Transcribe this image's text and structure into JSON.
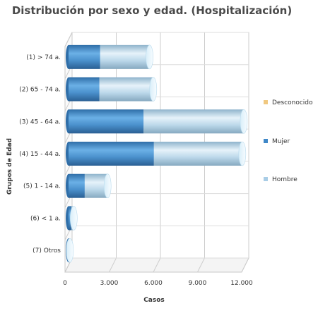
{
  "chart_data": {
    "type": "bar",
    "orientation": "horizontal",
    "stacked": true,
    "style": "3d-cylinder",
    "title": "Distribución por sexo y edad. (Hospitalización)",
    "xlabel": "Casos",
    "ylabel": "Grupos de Edad",
    "xlim": [
      0,
      12000
    ],
    "xticks": [
      0,
      3000,
      6000,
      9000,
      12000
    ],
    "xtick_labels": [
      "0",
      "3.000",
      "6.000",
      "9.000",
      "12.000"
    ],
    "grid": true,
    "legend_position": "right",
    "categories": [
      "(1) > 74 a.",
      "(2) 65 - 74 a.",
      "(3) 45 - 64 a.",
      "(4) 15 - 44 a.",
      "(5) 1 - 14 a.",
      "(6) < 1 a.",
      "(7) Otros"
    ],
    "series": [
      {
        "name": "Mujer",
        "color": "#3f88c8",
        "values": [
          2150,
          2100,
          5100,
          5800,
          1100,
          200,
          50
        ]
      },
      {
        "name": "Hombre",
        "color": "#a9cde6",
        "values": [
          3350,
          3650,
          6800,
          6000,
          1550,
          150,
          40
        ]
      },
      {
        "name": "Desconocido",
        "color": "#f0c880",
        "values": [
          0,
          0,
          0,
          0,
          0,
          0,
          0
        ]
      }
    ],
    "legend": [
      "Desconocido",
      "Mujer",
      "Hombre"
    ]
  }
}
